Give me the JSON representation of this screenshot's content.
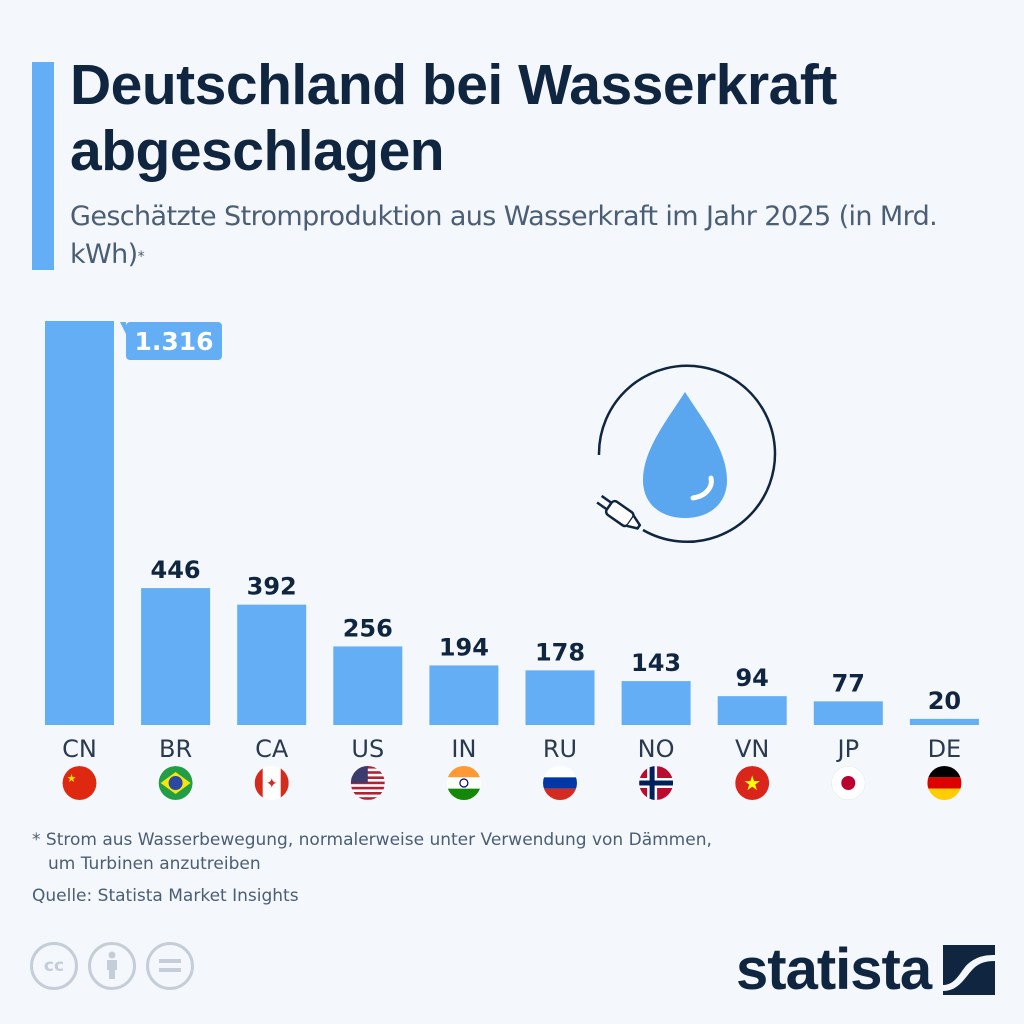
{
  "header": {
    "title": "Deutschland bei Wasserkraft abgeschlagen",
    "subtitle": "Geschätzte Stromproduktion aus Wasserkraft im Jahr 2025 (in Mrd. kWh)",
    "subtitle_marker": "*"
  },
  "colors": {
    "bar": "#64aef6",
    "accent": "#64aef6",
    "text_dark": "#0f2540",
    "background": "#f4f7fb"
  },
  "chart_data": {
    "type": "bar",
    "title": "Deutschland bei Wasserkraft abgeschlagen",
    "subtitle": "Geschätzte Stromproduktion aus Wasserkraft im Jahr 2025 (in Mrd. kWh)*",
    "xlabel": "",
    "ylabel": "Mrd. kWh",
    "ylim": [
      0,
      1316
    ],
    "grid": false,
    "categories": [
      "CN",
      "BR",
      "CA",
      "US",
      "IN",
      "RU",
      "NO",
      "VN",
      "JP",
      "DE"
    ],
    "values": [
      1316,
      446,
      392,
      256,
      194,
      178,
      143,
      94,
      77,
      20
    ],
    "value_labels": [
      "1.316",
      "446",
      "392",
      "256",
      "194",
      "178",
      "143",
      "94",
      "77",
      "20"
    ],
    "flags": [
      "flag-china-icon",
      "flag-brazil-icon",
      "flag-canada-icon",
      "flag-usa-icon",
      "flag-india-icon",
      "flag-russia-icon",
      "flag-norway-icon",
      "flag-vietnam-icon",
      "flag-japan-icon",
      "flag-germany-icon"
    ],
    "highlight_label_index": 0
  },
  "illustration": "water-drop-plug-icon",
  "footer": {
    "footnote_line1": "* Strom aus Wasserbewegung, normalerweise unter Verwendung von Dämmen,",
    "footnote_line2": "um Turbinen anzutreiben",
    "source": "Quelle: Statista Market Insights",
    "license_icons": [
      "cc-icon",
      "attribution-icon",
      "no-derivatives-icon"
    ],
    "cc_text": "cc",
    "brand": "statista"
  }
}
